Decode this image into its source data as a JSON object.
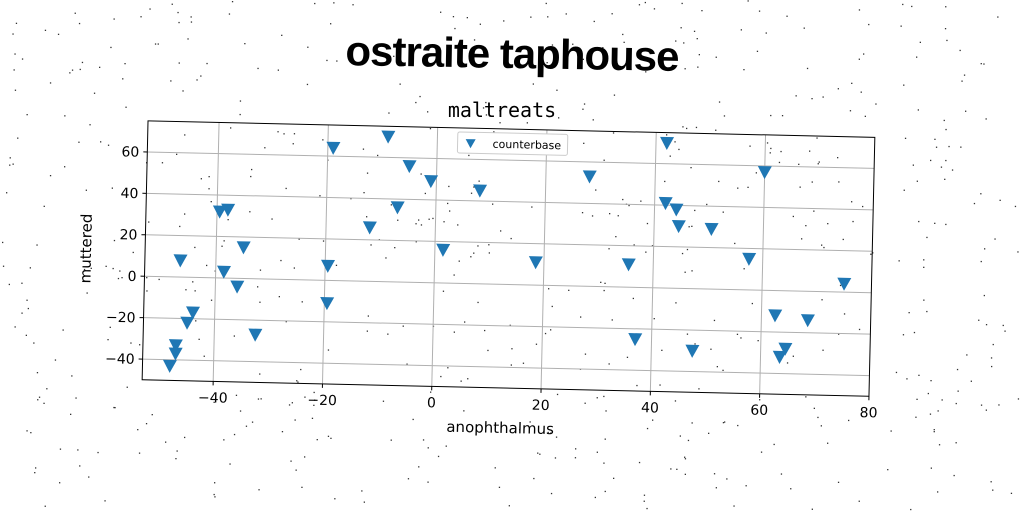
{
  "headline": "ostraite taphouse",
  "chart_data": {
    "type": "scatter",
    "title": "maltreats",
    "xlabel": "anophthalmus",
    "ylabel": "muttered",
    "xlim": [
      -53,
      80
    ],
    "ylim": [
      -50,
      75
    ],
    "xticks": [
      -40,
      -20,
      0,
      20,
      40,
      60,
      80
    ],
    "yticks": [
      -40,
      -20,
      0,
      20,
      40,
      60
    ],
    "xtick_labels": [
      "−40",
      "−20",
      "0",
      "20",
      "40",
      "60",
      "80"
    ],
    "ytick_labels": [
      "−40",
      "−20",
      "0",
      "20",
      "40",
      "60"
    ],
    "grid": true,
    "legend_position": "top-center",
    "marker": "triangle-down",
    "color": "#1f77b4",
    "series": [
      {
        "name": "counterbase",
        "points": [
          [
            -48.0,
            -43
          ],
          [
            -47.0,
            -37
          ],
          [
            -47.0,
            -33
          ],
          [
            -45.0,
            -22
          ],
          [
            -44.0,
            -17
          ],
          [
            -46.5,
            8
          ],
          [
            -39.5,
            32
          ],
          [
            -38.0,
            33
          ],
          [
            -38.5,
            3
          ],
          [
            -35.0,
            15
          ],
          [
            -36.0,
            -4
          ],
          [
            -32.5,
            -27
          ],
          [
            -19.5,
            7
          ],
          [
            -19.5,
            -11
          ],
          [
            -19.0,
            64
          ],
          [
            -12.0,
            26
          ],
          [
            -9.0,
            70
          ],
          [
            -7.0,
            36
          ],
          [
            -5.0,
            56
          ],
          [
            -1.0,
            49
          ],
          [
            1.5,
            16
          ],
          [
            8.0,
            45
          ],
          [
            18.5,
            11
          ],
          [
            28.0,
            53
          ],
          [
            35.5,
            11
          ],
          [
            37.0,
            -25
          ],
          [
            42.0,
            70
          ],
          [
            42.0,
            41
          ],
          [
            44.0,
            38
          ],
          [
            44.5,
            30
          ],
          [
            47.5,
            -30
          ],
          [
            50.5,
            29
          ],
          [
            57.5,
            15
          ],
          [
            60.0,
            57
          ],
          [
            62.5,
            -12
          ],
          [
            63.5,
            -32
          ],
          [
            64.5,
            -28
          ],
          [
            68.5,
            -14
          ],
          [
            75.0,
            4
          ]
        ]
      }
    ]
  }
}
